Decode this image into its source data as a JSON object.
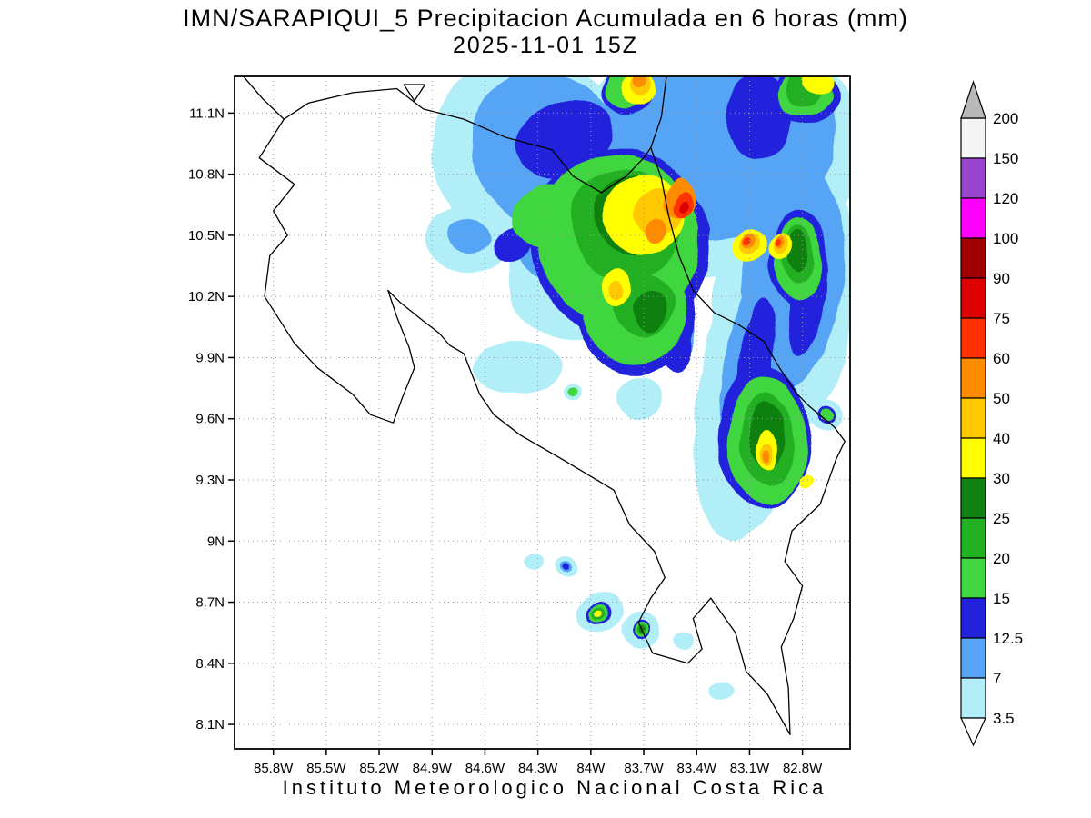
{
  "chart_data": {
    "type": "heatmap",
    "title": "IMN/SARAPIQUI_5 Precipitacion Acumulada en 6 horas (mm)",
    "subtitle": "2025-11-01 15Z",
    "footer": "Instituto Meteorologico Nacional Costa Rica",
    "units": "mm",
    "lon_range_w": [
      86.02,
      82.53
    ],
    "lat_range": [
      7.98,
      11.28
    ],
    "lon_ticks_w": [
      85.8,
      85.5,
      85.2,
      84.9,
      84.6,
      84.3,
      84.0,
      83.7,
      83.4,
      83.1,
      82.8
    ],
    "lon_tick_labels": [
      "85.8W",
      "85.5W",
      "85.2W",
      "84.9W",
      "84.6W",
      "84.3W",
      "84W",
      "83.7W",
      "83.4W",
      "83.1W",
      "82.8W"
    ],
    "lat_ticks": [
      11.1,
      10.8,
      10.5,
      10.2,
      9.9,
      9.6,
      9.3,
      9.0,
      8.7,
      8.4,
      8.1
    ],
    "lat_tick_labels": [
      "11.1N",
      "10.8N",
      "10.5N",
      "10.2N",
      "9.9N",
      "9.6N",
      "9.3N",
      "9N",
      "8.7N",
      "8.4N",
      "8.1N"
    ],
    "grid": true,
    "colorbar": {
      "levels": [
        3.5,
        7,
        12.5,
        15,
        20,
        25,
        30,
        40,
        50,
        60,
        75,
        90,
        100,
        120,
        150,
        200
      ],
      "labels": [
        "3.5",
        "7",
        "12.5",
        "15",
        "20",
        "25",
        "30",
        "40",
        "50",
        "60",
        "75",
        "90",
        "100",
        "120",
        "150",
        "200"
      ],
      "colors": [
        "#b2eef8",
        "#56a4f6",
        "#2222dd",
        "#3fd63f",
        "#22b022",
        "#108010",
        "#ffff00",
        "#ffc800",
        "#ff8c00",
        "#ff3000",
        "#dd0000",
        "#a00000",
        "#ff00ff",
        "#9944cc",
        "#f4f4f4"
      ],
      "over_color": "#b8b8b8",
      "under_color": "#ffffff"
    },
    "map_outline": [
      {
        "name": "costa-rica-outline",
        "closed": true,
        "points": [
          [
            85.74,
            11.07
          ],
          [
            85.6,
            11.15
          ],
          [
            85.35,
            11.2
          ],
          [
            85.1,
            11.22
          ],
          [
            84.95,
            11.12
          ],
          [
            84.72,
            11.07
          ],
          [
            84.48,
            10.98
          ],
          [
            84.22,
            10.92
          ],
          [
            84.1,
            10.79
          ],
          [
            83.94,
            10.71
          ],
          [
            83.8,
            10.79
          ],
          [
            83.7,
            10.88
          ],
          [
            83.66,
            10.93
          ],
          [
            83.6,
            10.78
          ],
          [
            83.56,
            10.6
          ],
          [
            83.5,
            10.4
          ],
          [
            83.42,
            10.23
          ],
          [
            83.3,
            10.12
          ],
          [
            83.16,
            10.06
          ],
          [
            83.02,
            9.98
          ],
          [
            82.93,
            9.85
          ],
          [
            82.84,
            9.73
          ],
          [
            82.76,
            9.66
          ],
          [
            82.62,
            9.56
          ],
          [
            82.56,
            9.49
          ],
          [
            82.61,
            9.4
          ],
          [
            82.7,
            9.18
          ],
          [
            82.86,
            9.05
          ],
          [
            82.9,
            8.9
          ],
          [
            82.8,
            8.78
          ],
          [
            82.85,
            8.62
          ],
          [
            82.92,
            8.48
          ],
          [
            82.88,
            8.28
          ],
          [
            82.87,
            8.05
          ],
          [
            83.0,
            8.25
          ],
          [
            83.12,
            8.36
          ],
          [
            83.18,
            8.55
          ],
          [
            83.32,
            8.72
          ],
          [
            83.42,
            8.62
          ],
          [
            83.37,
            8.47
          ],
          [
            83.45,
            8.4
          ],
          [
            83.65,
            8.45
          ],
          [
            83.73,
            8.6
          ],
          [
            83.66,
            8.72
          ],
          [
            83.58,
            8.82
          ],
          [
            83.64,
            8.95
          ],
          [
            83.78,
            9.08
          ],
          [
            83.87,
            9.25
          ],
          [
            84.16,
            9.4
          ],
          [
            84.4,
            9.52
          ],
          [
            84.55,
            9.62
          ],
          [
            84.63,
            9.72
          ],
          [
            84.72,
            9.92
          ],
          [
            84.8,
            9.96
          ],
          [
            84.86,
            10.02
          ],
          [
            84.95,
            10.08
          ],
          [
            85.08,
            10.17
          ],
          [
            85.15,
            10.23
          ],
          [
            85.1,
            10.1
          ],
          [
            85.03,
            9.95
          ],
          [
            85.0,
            9.85
          ],
          [
            85.07,
            9.7
          ],
          [
            85.12,
            9.58
          ],
          [
            85.25,
            9.62
          ],
          [
            85.35,
            9.72
          ],
          [
            85.55,
            9.85
          ],
          [
            85.68,
            9.97
          ],
          [
            85.85,
            10.2
          ],
          [
            85.82,
            10.4
          ],
          [
            85.72,
            10.5
          ],
          [
            85.8,
            10.62
          ],
          [
            85.68,
            10.75
          ],
          [
            85.88,
            10.88
          ]
        ]
      },
      {
        "name": "nicaragua-pacific-coast",
        "closed": false,
        "points": [
          [
            85.74,
            11.07
          ],
          [
            85.86,
            11.17
          ],
          [
            85.98,
            11.29
          ]
        ]
      },
      {
        "name": "nicaragua-caribbean-coast",
        "closed": false,
        "points": [
          [
            83.66,
            10.93
          ],
          [
            83.6,
            11.08
          ],
          [
            83.57,
            11.29
          ]
        ]
      },
      {
        "name": "lake-nicaragua-tip",
        "closed": true,
        "points": [
          [
            85.06,
            11.24
          ],
          [
            85.0,
            11.16
          ],
          [
            84.94,
            11.24
          ]
        ]
      }
    ],
    "blob_format": [
      "band_index",
      "lon_w",
      "lat",
      "rx_deg",
      "ry_deg",
      "rotate_deg"
    ],
    "blobs": [
      [
        0,
        83.3,
        10.9,
        0.85,
        0.6,
        -10
      ],
      [
        0,
        84.35,
        10.9,
        0.55,
        0.5,
        -30
      ],
      [
        0,
        84.05,
        10.35,
        0.45,
        0.35,
        -40
      ],
      [
        0,
        82.9,
        10.2,
        0.4,
        0.7,
        5
      ],
      [
        0,
        83.1,
        9.7,
        0.3,
        0.7,
        8
      ],
      [
        0,
        84.69,
        10.48,
        0.23,
        0.16,
        0
      ],
      [
        0,
        84.42,
        9.85,
        0.25,
        0.13,
        0
      ],
      [
        0,
        83.72,
        9.7,
        0.13,
        0.11,
        0
      ],
      [
        0,
        84.1,
        9.74,
        0.05,
        0.04,
        0
      ],
      [
        0,
        84.33,
        8.89,
        0.05,
        0.04,
        0
      ],
      [
        0,
        84.14,
        8.87,
        0.07,
        0.055,
        0
      ],
      [
        0,
        83.95,
        8.65,
        0.12,
        0.09,
        -15
      ],
      [
        0,
        83.73,
        8.56,
        0.11,
        0.09,
        0
      ],
      [
        0,
        83.48,
        8.51,
        0.06,
        0.05,
        0
      ],
      [
        0,
        83.26,
        8.27,
        0.07,
        0.05,
        0
      ],
      [
        0,
        82.66,
        9.62,
        0.1,
        0.08,
        0
      ],
      [
        1,
        83.3,
        10.95,
        0.7,
        0.47,
        -10
      ],
      [
        1,
        84.25,
        10.92,
        0.42,
        0.4,
        -30
      ],
      [
        1,
        84.15,
        10.5,
        0.3,
        0.22,
        -40
      ],
      [
        1,
        82.85,
        10.3,
        0.28,
        0.55,
        5
      ],
      [
        1,
        83.08,
        9.8,
        0.18,
        0.5,
        8
      ],
      [
        1,
        83.55,
        10.05,
        0.15,
        0.2,
        0
      ],
      [
        1,
        84.14,
        8.87,
        0.038,
        0.03,
        0
      ],
      [
        1,
        84.69,
        10.5,
        0.12,
        0.08,
        0
      ],
      [
        2,
        84.15,
        10.98,
        0.28,
        0.18,
        -25
      ],
      [
        2,
        83.05,
        11.08,
        0.2,
        0.22,
        0
      ],
      [
        2,
        82.78,
        10.2,
        0.1,
        0.28,
        5
      ],
      [
        2,
        83.08,
        9.8,
        0.1,
        0.4,
        8
      ],
      [
        2,
        83.52,
        10.0,
        0.1,
        0.18,
        0
      ],
      [
        2,
        84.45,
        10.45,
        0.12,
        0.08,
        -30
      ],
      [
        2,
        83.84,
        10.46,
        0.5,
        0.47,
        -15
      ],
      [
        2,
        83.74,
        10.1,
        0.34,
        0.28,
        0
      ],
      [
        2,
        83.02,
        9.52,
        0.26,
        0.34,
        0
      ],
      [
        2,
        82.82,
        10.38,
        0.16,
        0.24,
        0
      ],
      [
        2,
        82.77,
        11.18,
        0.18,
        0.13,
        0
      ],
      [
        2,
        83.79,
        11.21,
        0.15,
        0.12,
        0
      ],
      [
        2,
        83.95,
        8.65,
        0.065,
        0.05,
        -15
      ],
      [
        2,
        83.73,
        8.56,
        0.05,
        0.045,
        0
      ],
      [
        2,
        84.14,
        8.87,
        0.022,
        0.018,
        0
      ],
      [
        2,
        82.66,
        9.62,
        0.055,
        0.045,
        0
      ],
      [
        3,
        83.85,
        10.48,
        0.45,
        0.42,
        -15
      ],
      [
        3,
        83.75,
        10.12,
        0.3,
        0.25,
        0
      ],
      [
        3,
        84.25,
        10.6,
        0.2,
        0.15,
        -30
      ],
      [
        3,
        83.0,
        9.5,
        0.22,
        0.3,
        0
      ],
      [
        3,
        82.82,
        10.38,
        0.13,
        0.2,
        0
      ],
      [
        3,
        82.78,
        11.18,
        0.15,
        0.1,
        0
      ],
      [
        3,
        83.8,
        11.22,
        0.12,
        0.1,
        0
      ],
      [
        3,
        83.95,
        8.65,
        0.05,
        0.04,
        -15
      ],
      [
        3,
        83.73,
        8.56,
        0.04,
        0.035,
        0
      ],
      [
        3,
        84.1,
        9.74,
        0.028,
        0.022,
        0
      ],
      [
        3,
        82.66,
        9.62,
        0.04,
        0.03,
        0
      ],
      [
        4,
        83.8,
        10.55,
        0.3,
        0.28,
        -15
      ],
      [
        4,
        83.7,
        10.15,
        0.18,
        0.15,
        0
      ],
      [
        4,
        83.0,
        9.5,
        0.15,
        0.22,
        0
      ],
      [
        4,
        82.82,
        10.4,
        0.09,
        0.14,
        0
      ],
      [
        4,
        83.95,
        8.65,
        0.035,
        0.028,
        0
      ],
      [
        4,
        83.73,
        8.56,
        0.028,
        0.024,
        0
      ],
      [
        4,
        82.78,
        11.2,
        0.1,
        0.08,
        0
      ],
      [
        5,
        83.75,
        10.6,
        0.22,
        0.2,
        -15
      ],
      [
        5,
        83.66,
        10.12,
        0.1,
        0.1,
        0
      ],
      [
        5,
        83.0,
        9.52,
        0.1,
        0.16,
        0
      ],
      [
        5,
        82.82,
        10.42,
        0.06,
        0.1,
        0
      ],
      [
        5,
        83.73,
        8.56,
        0.018,
        0.016,
        0
      ],
      [
        6,
        83.7,
        10.6,
        0.22,
        0.2,
        -10
      ],
      [
        6,
        83.85,
        10.24,
        0.08,
        0.1,
        0
      ],
      [
        6,
        83.1,
        10.45,
        0.1,
        0.07,
        0
      ],
      [
        6,
        82.92,
        10.45,
        0.07,
        0.055,
        0
      ],
      [
        6,
        83.0,
        9.45,
        0.06,
        0.1,
        0
      ],
      [
        6,
        82.79,
        9.3,
        0.04,
        0.035,
        0
      ],
      [
        6,
        83.95,
        8.65,
        0.02,
        0.016,
        0
      ],
      [
        6,
        83.73,
        11.22,
        0.1,
        0.08,
        0
      ],
      [
        6,
        82.7,
        11.24,
        0.08,
        0.06,
        0
      ],
      [
        7,
        83.62,
        10.62,
        0.13,
        0.12,
        -10
      ],
      [
        7,
        83.1,
        10.46,
        0.06,
        0.045,
        0
      ],
      [
        7,
        82.92,
        10.46,
        0.045,
        0.04,
        0
      ],
      [
        7,
        83.0,
        9.43,
        0.035,
        0.06,
        0
      ],
      [
        7,
        83.72,
        11.24,
        0.06,
        0.05,
        0
      ],
      [
        7,
        83.85,
        10.22,
        0.04,
        0.05,
        0
      ],
      [
        8,
        83.5,
        10.68,
        0.09,
        0.1,
        20
      ],
      [
        8,
        83.62,
        10.52,
        0.05,
        0.06,
        0
      ],
      [
        8,
        83.11,
        10.47,
        0.04,
        0.03,
        0
      ],
      [
        8,
        82.93,
        10.47,
        0.03,
        0.025,
        0
      ],
      [
        8,
        83.0,
        9.42,
        0.02,
        0.035,
        0
      ],
      [
        8,
        83.73,
        11.26,
        0.04,
        0.035,
        0
      ],
      [
        9,
        83.48,
        10.65,
        0.05,
        0.07,
        20
      ],
      [
        9,
        83.12,
        10.47,
        0.022,
        0.018,
        0
      ],
      [
        9,
        82.94,
        10.47,
        0.018,
        0.015,
        0
      ],
      [
        10,
        83.48,
        10.64,
        0.022,
        0.032,
        20
      ]
    ]
  }
}
